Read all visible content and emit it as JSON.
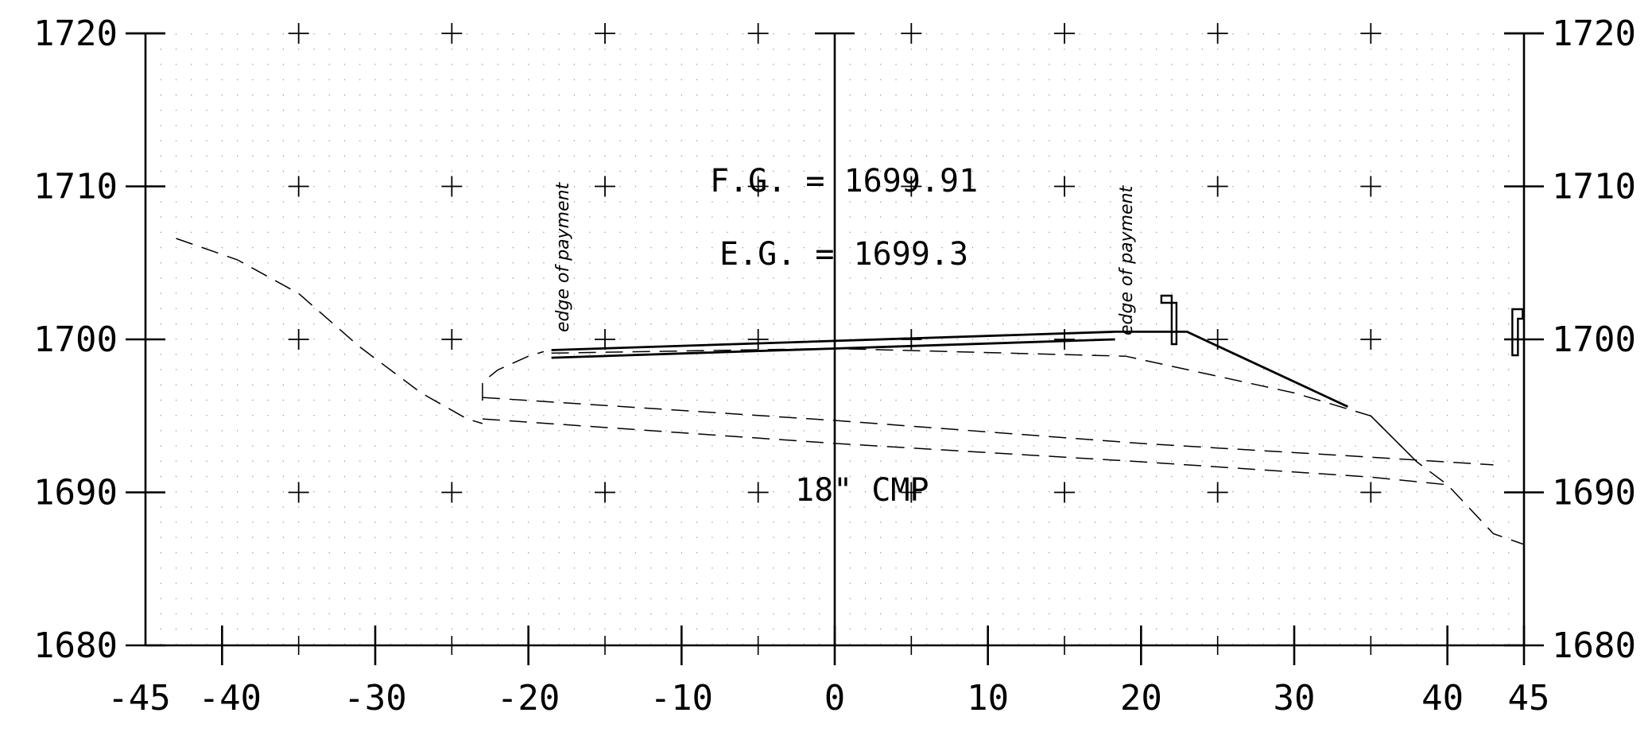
{
  "chart_data": {
    "type": "line",
    "xlim": [
      -45,
      45
    ],
    "ylim": [
      1680,
      1720
    ],
    "x_ticks": [
      "-45",
      "-40",
      "-30",
      "-20",
      "-10",
      "0",
      "10",
      "20",
      "30",
      "40",
      "45"
    ],
    "y_ticks": [
      "1680",
      "1690",
      "1700",
      "1710",
      "1720"
    ],
    "grid": "dotted",
    "annotations": {
      "fg": "F.G. = 1699.91",
      "eg": "E.G. = 1699.3",
      "pipe": "18\" CMP",
      "edge_left": "edge of payment",
      "edge_right": "edge of payment"
    },
    "series": [
      {
        "style": "dashed",
        "points": [
          [
            -43,
            1706.6
          ],
          [
            -39,
            1705.2
          ],
          [
            -35,
            1703
          ],
          [
            -31,
            1699.5
          ],
          [
            -27,
            1696.5
          ],
          [
            -24,
            1694.8
          ],
          [
            -23,
            1694.5
          ]
        ]
      },
      {
        "style": "dashed",
        "points": [
          [
            -23,
            1696
          ],
          [
            -23,
            1697.2
          ],
          [
            -22,
            1698
          ],
          [
            -20,
            1698.9
          ],
          [
            -19,
            1699.2
          ]
        ]
      },
      {
        "style": "solid",
        "points": [
          [
            -18.5,
            1699.3
          ],
          [
            18.3,
            1700.5
          ],
          [
            23,
            1700.5
          ],
          [
            33.5,
            1695.6
          ]
        ]
      },
      {
        "style": "solid",
        "points": [
          [
            -18.5,
            1698.8
          ],
          [
            18.3,
            1700
          ]
        ]
      },
      {
        "style": "dashed",
        "points": [
          [
            -18.5,
            1699.1
          ],
          [
            0,
            1699.4
          ],
          [
            19,
            1698.9
          ],
          [
            30,
            1696.5
          ],
          [
            33,
            1695.6
          ],
          [
            35,
            1695
          ],
          [
            38,
            1692
          ]
        ]
      },
      {
        "style": "dashed",
        "points": [
          [
            -23,
            1696.2
          ],
          [
            0,
            1694.7
          ],
          [
            20,
            1693.2
          ],
          [
            35,
            1692.3
          ],
          [
            43,
            1691.8
          ]
        ]
      },
      {
        "style": "dashed",
        "points": [
          [
            -23,
            1694.8
          ],
          [
            0,
            1693.2
          ],
          [
            20,
            1692
          ],
          [
            35,
            1691
          ],
          [
            40,
            1690.5
          ]
        ]
      },
      {
        "style": "dashed",
        "points": [
          [
            35,
            1695
          ],
          [
            38,
            1692
          ],
          [
            40,
            1690.5
          ],
          [
            43,
            1687.3
          ],
          [
            45,
            1686.6
          ]
        ]
      }
    ]
  }
}
